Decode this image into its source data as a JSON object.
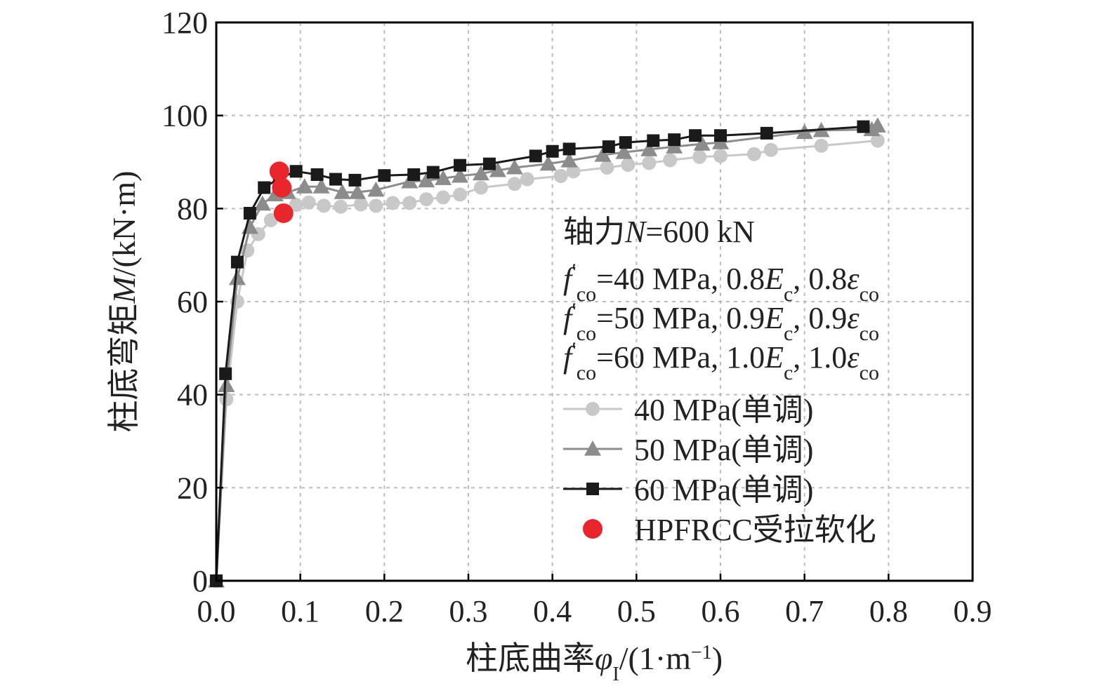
{
  "chart_data": {
    "type": "line",
    "xlabel": "柱底曲率φI/(1·m−1)",
    "ylabel": "柱底弯矩M/(kN·m)",
    "xlim": [
      0,
      0.9
    ],
    "ylim": [
      0,
      120
    ],
    "xticks": [
      "0.0",
      "0.1",
      "0.2",
      "0.3",
      "0.4",
      "0.5",
      "0.6",
      "0.7",
      "0.8",
      "0.9"
    ],
    "yticks": [
      "0",
      "20",
      "40",
      "60",
      "80",
      "100",
      "120"
    ],
    "grid": true,
    "legend_position": "right",
    "annotations": [
      "轴力N=600 kN",
      "f′co=40 MPa, 0.8Ec, 0.8εco",
      "f′co=50 MPa, 0.9Ec, 0.9εco",
      "f′co=60 MPa, 1.0Ec, 1.0εco"
    ],
    "series": [
      {
        "name": "40 MPa(单调)",
        "color": "#c8c8c8",
        "marker": "circle",
        "x": [
          0,
          0.012,
          0.025,
          0.037,
          0.05,
          0.065,
          0.08,
          0.095,
          0.11,
          0.128,
          0.148,
          0.172,
          0.19,
          0.21,
          0.23,
          0.25,
          0.27,
          0.29,
          0.315,
          0.355,
          0.37,
          0.41,
          0.425,
          0.465,
          0.49,
          0.515,
          0.54,
          0.575,
          0.6,
          0.64,
          0.66,
          0.72,
          0.787
        ],
        "y": [
          0,
          39,
          60,
          71,
          74.5,
          77.5,
          79.5,
          80.8,
          81.3,
          80.6,
          80.4,
          80.9,
          80.6,
          81.2,
          81.2,
          82,
          82.4,
          83,
          84.5,
          85.3,
          86.3,
          87,
          88,
          88.8,
          89.4,
          89.8,
          90.4,
          91.1,
          91.3,
          91.7,
          92.6,
          93.5,
          94.6
        ]
      },
      {
        "name": "50 MPa(单调)",
        "color": "#8c8c8c",
        "marker": "triangle",
        "x": [
          0,
          0.012,
          0.025,
          0.04,
          0.055,
          0.07,
          0.085,
          0.105,
          0.125,
          0.15,
          0.168,
          0.19,
          0.23,
          0.25,
          0.27,
          0.29,
          0.315,
          0.335,
          0.355,
          0.395,
          0.42,
          0.46,
          0.485,
          0.515,
          0.545,
          0.578,
          0.6,
          0.7,
          0.72,
          0.78,
          0.787
        ],
        "y": [
          0,
          42,
          65,
          76,
          81,
          83,
          83.5,
          84.7,
          84.7,
          83.5,
          83.5,
          84,
          85.8,
          86,
          86.5,
          87,
          87.5,
          88.2,
          88.8,
          89.6,
          90.3,
          91.5,
          92.1,
          92.7,
          93.3,
          93.9,
          94.2,
          96.4,
          96.8,
          97,
          97.8
        ]
      },
      {
        "name": "60 MPa(单调)",
        "color": "#1a1a1a",
        "marker": "square",
        "x": [
          0,
          0.011,
          0.025,
          0.04,
          0.057,
          0.075,
          0.095,
          0.12,
          0.142,
          0.165,
          0.2,
          0.235,
          0.258,
          0.29,
          0.325,
          0.38,
          0.4,
          0.42,
          0.467,
          0.487,
          0.52,
          0.545,
          0.57,
          0.6,
          0.655,
          0.77
        ],
        "y": [
          0,
          44.5,
          68.5,
          79,
          84.5,
          86.5,
          88,
          87.3,
          86.3,
          86.1,
          87.1,
          87.3,
          87.8,
          89.3,
          89.6,
          91.3,
          92.3,
          92.8,
          93.3,
          94.2,
          94.6,
          94.8,
          95.7,
          95.7,
          96.2,
          97.6
        ]
      },
      {
        "name": "HPFRCC受拉软化",
        "color": "#e8262b",
        "marker": "circle-large",
        "x": [
          0.075,
          0.078,
          0.08
        ],
        "y": [
          88,
          84.5,
          79
        ]
      }
    ]
  }
}
